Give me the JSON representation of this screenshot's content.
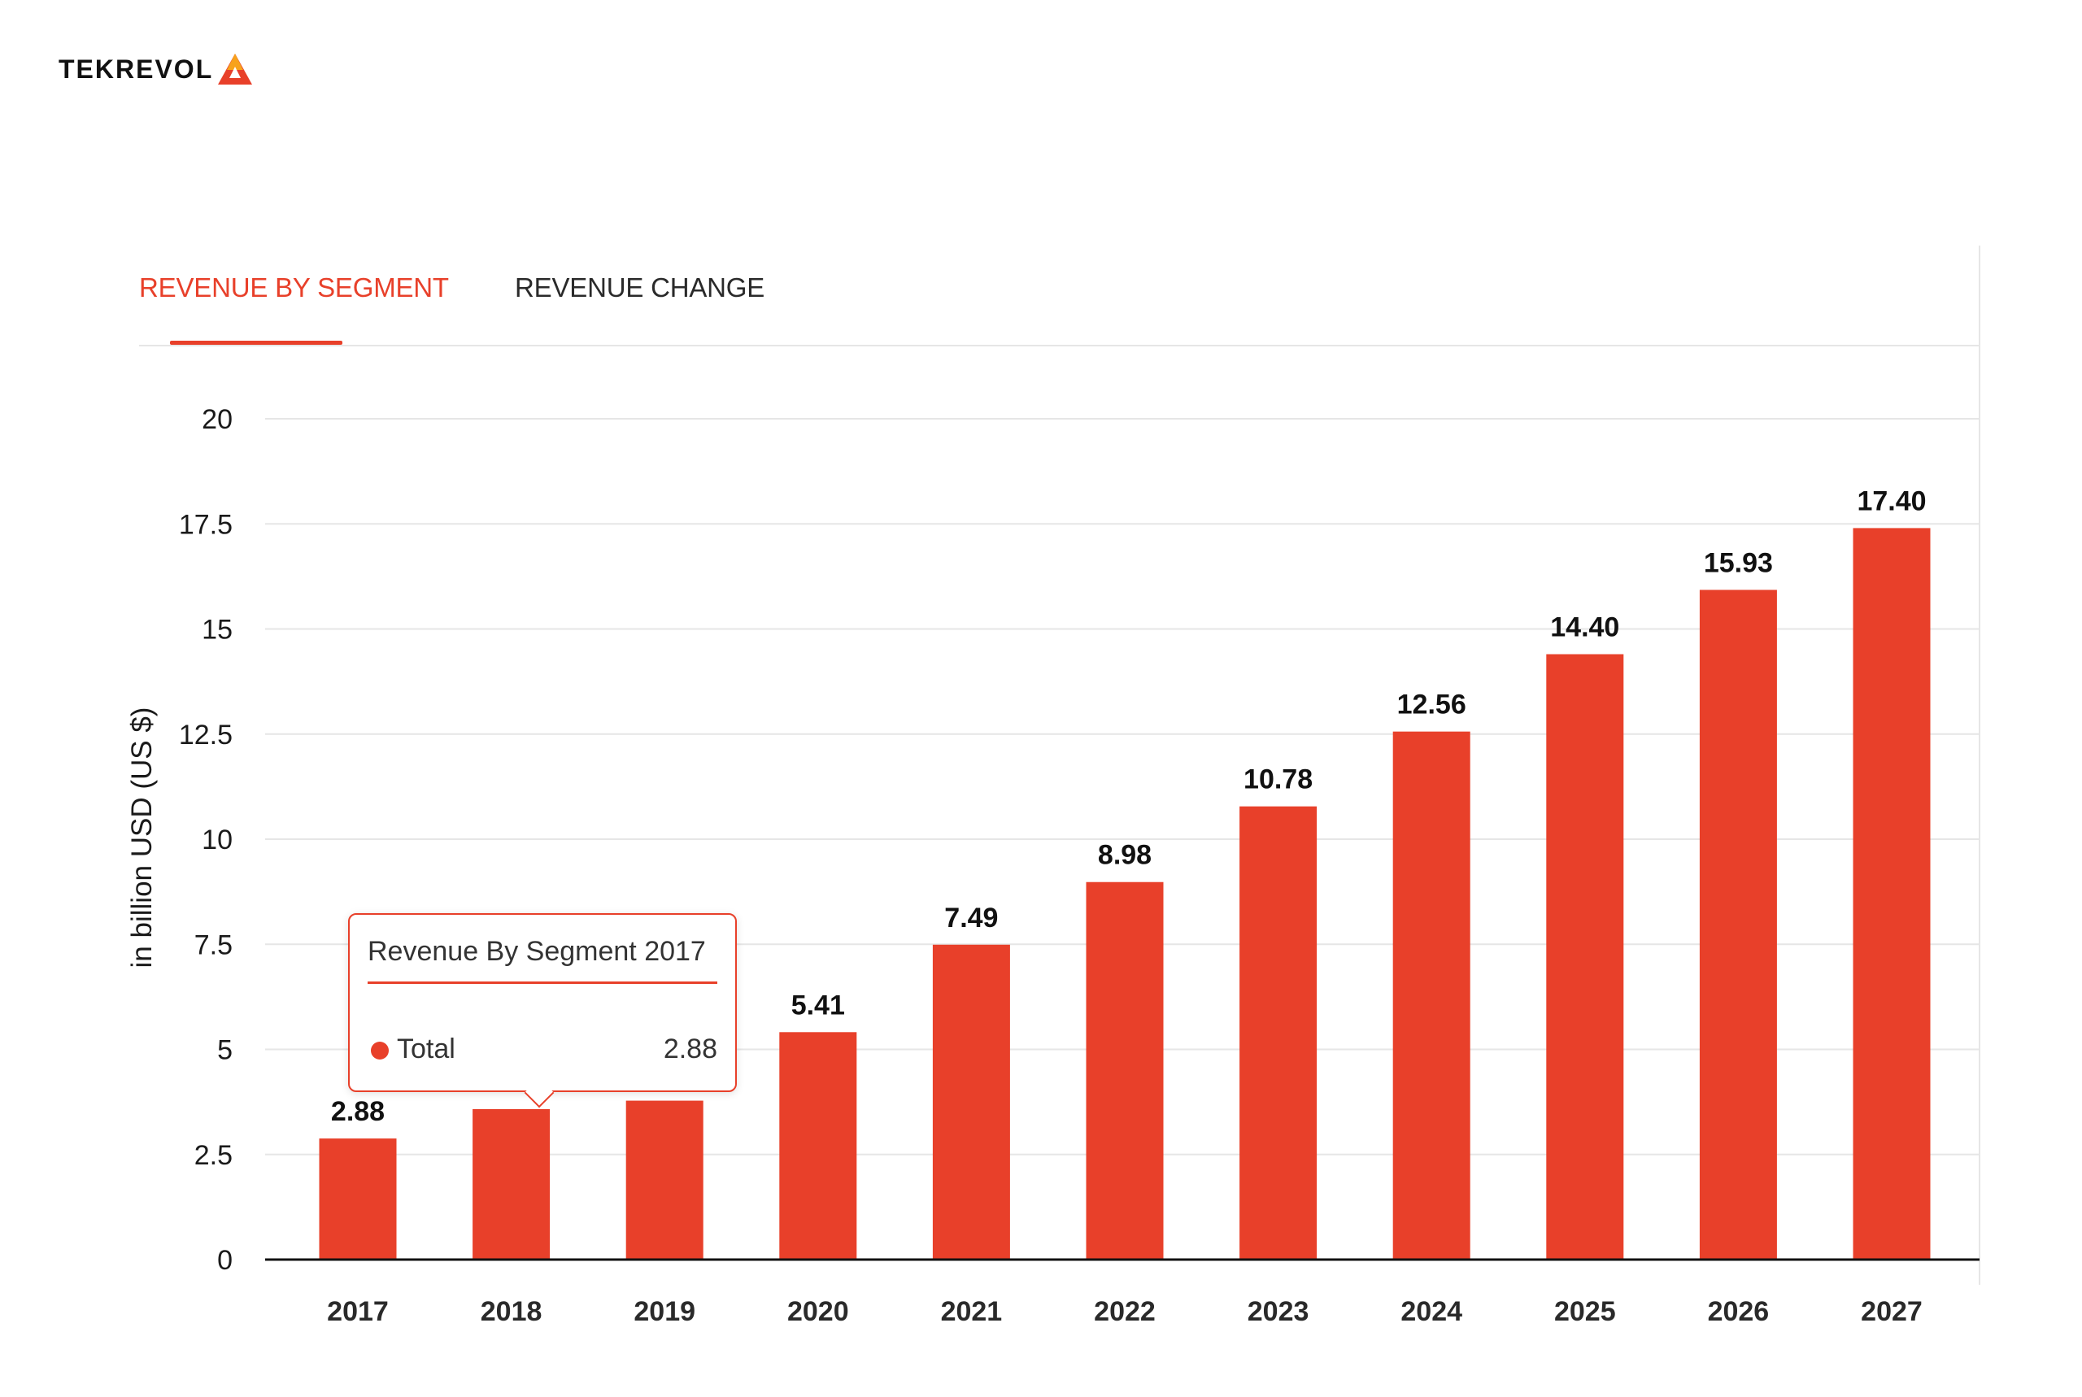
{
  "logo": {
    "text": "TEKREVOL"
  },
  "tabs": [
    {
      "label": "REVENUE BY SEGMENT",
      "active": true
    },
    {
      "label": "REVENUE CHANGE",
      "active": false
    }
  ],
  "colors": {
    "accent": "#e8402a",
    "bar": "#e8402a",
    "grid": "#e6e6e6",
    "axis": "#111111"
  },
  "tooltip": {
    "title": "Revenue By Segment 2017",
    "series_label": "Total",
    "value": "2.88"
  },
  "chart_data": {
    "type": "bar",
    "title": "",
    "xlabel": "",
    "ylabel": "in billion USD (US $)",
    "ylim": [
      0,
      20
    ],
    "yticks": [
      0,
      2.5,
      5,
      7.5,
      10,
      12.5,
      15,
      17.5,
      20
    ],
    "ytick_labels": [
      "0",
      "2.5",
      "5",
      "7.5",
      "10",
      "12.5",
      "15",
      "17.5",
      "20"
    ],
    "grid": true,
    "categories": [
      "2017",
      "2018",
      "2019",
      "2020",
      "2021",
      "2022",
      "2023",
      "2024",
      "2025",
      "2026",
      "2027"
    ],
    "values": [
      2.88,
      3.58,
      3.78,
      5.41,
      7.49,
      8.98,
      10.78,
      12.56,
      14.4,
      15.93,
      17.4
    ],
    "data_labels": [
      "2.88",
      "",
      "",
      "5.41",
      "7.49",
      "8.98",
      "10.78",
      "12.56",
      "14.40",
      "15.93",
      "17.40"
    ]
  }
}
